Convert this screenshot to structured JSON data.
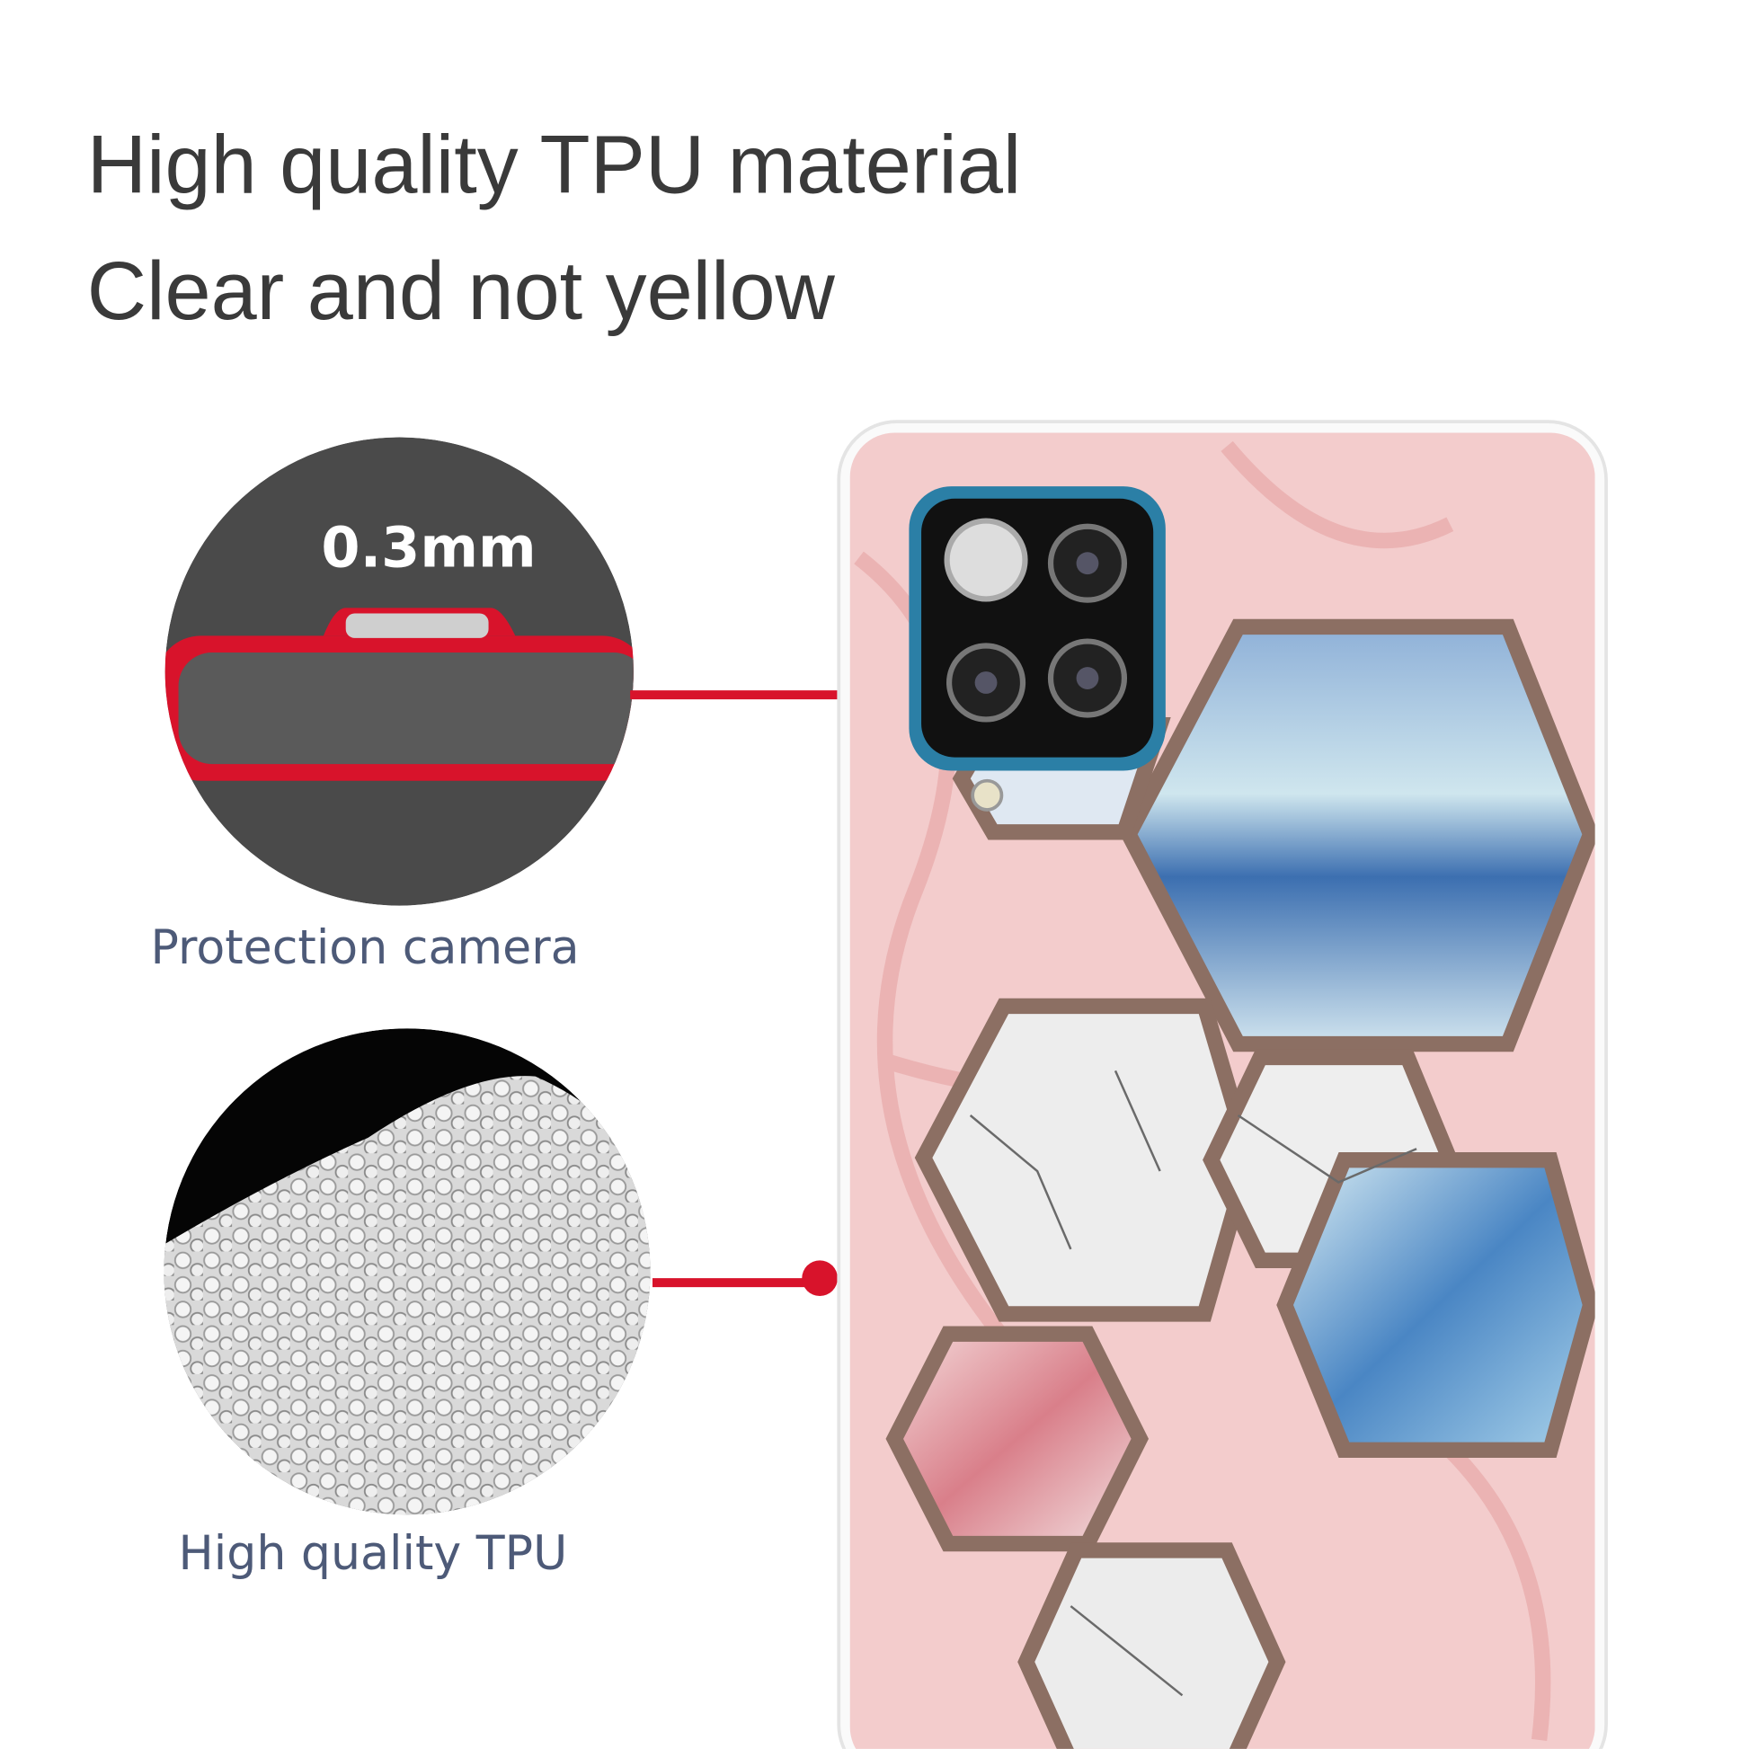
{
  "headline": {
    "line1": "High quality TPU material",
    "line2": "Clear and not yellow"
  },
  "callouts": [
    {
      "label": "Protection camera",
      "detail": "0.3mm",
      "icon": "case-edge-cross-section"
    },
    {
      "label": "High quality TPU",
      "icon": "tpu-granules"
    }
  ],
  "colors": {
    "accent_red": "#d8132b",
    "caption": "#4d5a78",
    "hex_border": "#8c6f63",
    "case_pink": "#f3cccc",
    "camera_frame": "#2b7fa6"
  }
}
